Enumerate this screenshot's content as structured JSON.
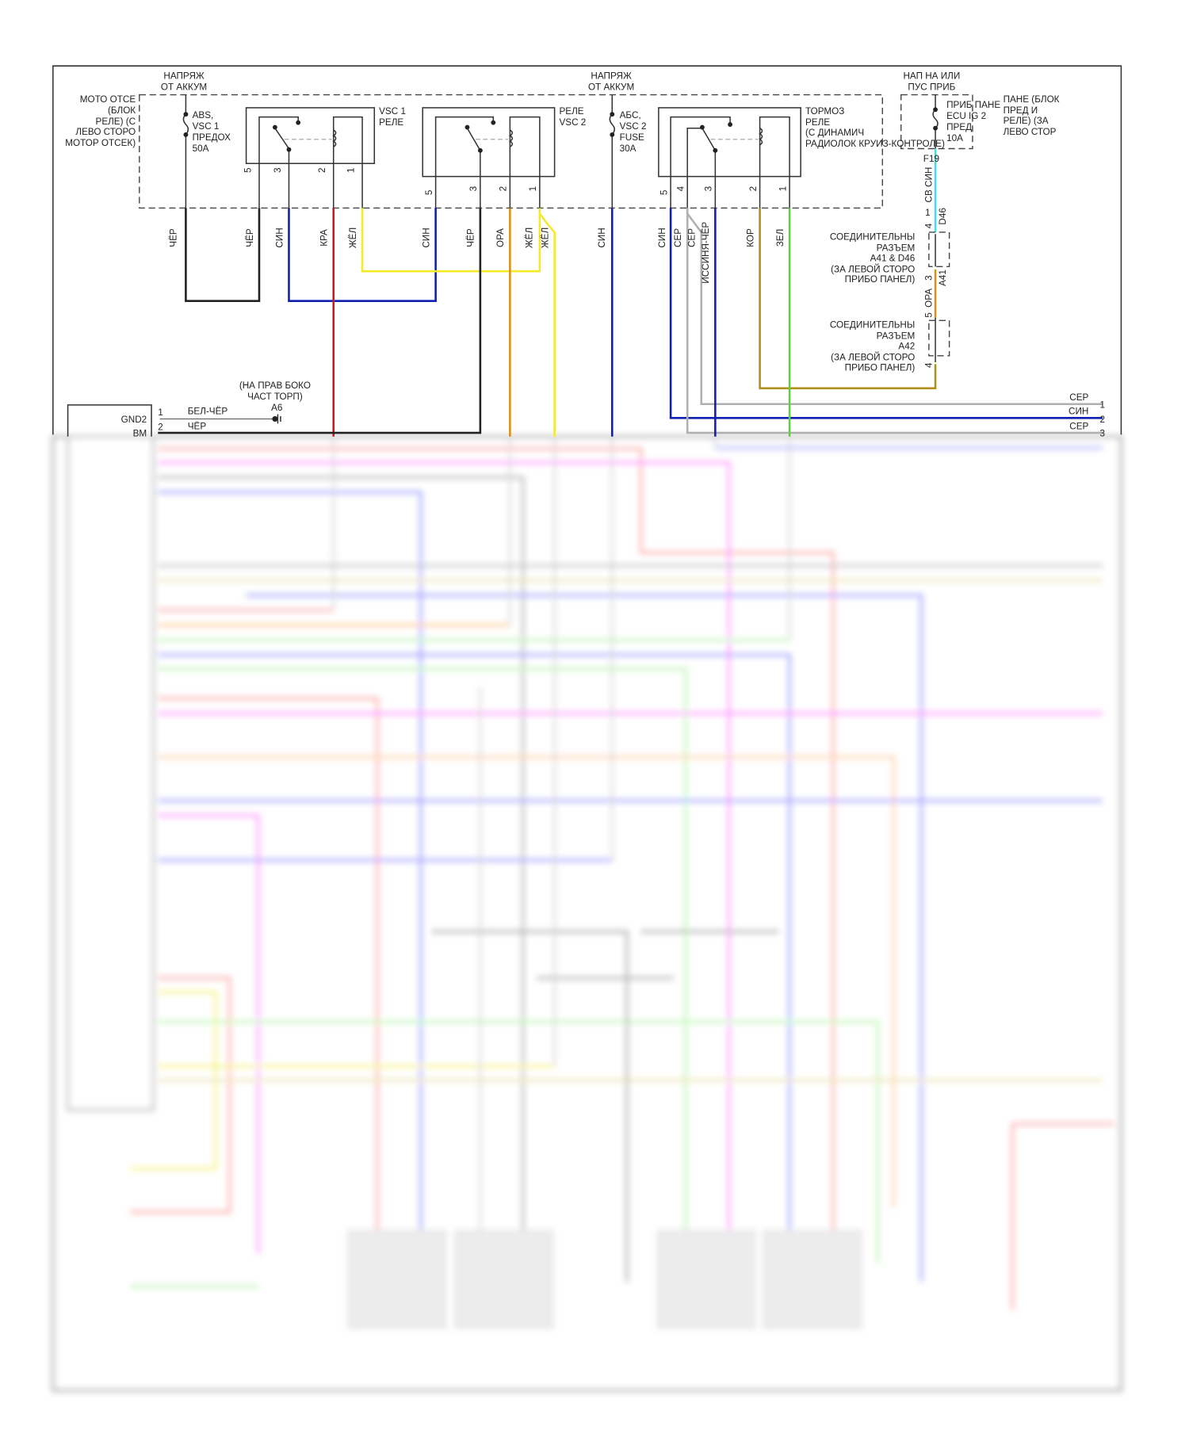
{
  "colors": {
    "black": "#222222",
    "blue": "#1020b0",
    "red": "#d01818",
    "yellow": "#f2ea2a",
    "orange": "#d8901a",
    "brown": "#b0901a",
    "green": "#60d040",
    "gray": "#b0b0b0",
    "cyan": "#40e0e8"
  },
  "top_labels": {
    "batt1": [
      "НАПРЯЖ",
      "ОТ АККУМ"
    ],
    "batt2": [
      "НАПРЯЖ",
      "ОТ АККУМ"
    ],
    "ign": [
      "НАП НА ИЛИ",
      "ПУС ПРИБ"
    ]
  },
  "engine_block": [
    "МОТО ОТСЕ",
    "(БЛОК",
    "РЕЛЕ) (С",
    "ЛЕВО СТОРО",
    "МОТОР ОТСЕК)"
  ],
  "fuse1": [
    "ABS,",
    "VSC 1",
    "ПРЕДОХ",
    "50A"
  ],
  "fuse2": [
    "АБС,",
    "VSC 2",
    "FUSE",
    "30A"
  ],
  "relay1": [
    "VSC 1",
    "РЕЛЕ"
  ],
  "relay2": [
    "РЕЛЕ",
    "VSC 2"
  ],
  "relay3": [
    "ТОРМОЗ",
    "РЕЛЕ",
    "(С ДИНАМИЧ",
    "РАДИОЛОК КРУИЗ-КОНТРОЛЕ)"
  ],
  "fuse3": [
    "ПРИБ ПАНЕ",
    "ECU IG 2",
    "ПРЕД",
    "10A"
  ],
  "panel_block": [
    "ПАНЕ (БЛОК",
    "ПРЕД И",
    "РЕЛЕ) (ЗА",
    "ЛЕВО СТОР"
  ],
  "pins": {
    "p1": "1",
    "p2": "2",
    "p3": "3",
    "p4": "4",
    "p5": "5"
  },
  "wire_labels": [
    "ЧЁР",
    "ЧЁР",
    "СИН",
    "КРА",
    "ЖЁЛ",
    "СИН",
    "ЧЁР",
    "ОРА",
    "ЖЁЛ",
    "ЖЁЛ",
    "СИН",
    "СИН",
    "СЕР",
    "СЕР",
    "ИССИНЯ-ЧЁР",
    "КОР",
    "ЗЕЛ"
  ],
  "f19": {
    "id": "F19",
    "wire": "СВ СИН",
    "pin": "1"
  },
  "d46": {
    "pin": "4",
    "id": "D46"
  },
  "a41": {
    "pin": "3",
    "id": "A41",
    "pin2": "5",
    "wire": "ОРА"
  },
  "a42": {
    "pin": "4"
  },
  "junction1": [
    "СОЕДИНИТЕЛЬНЫ",
    "РАЗЪЕМ",
    "A41 & D46",
    "(ЗА ЛЕВОЙ СТОРО",
    "ПРИБО ПАНЕЛ)"
  ],
  "junction2": [
    "СОЕДИНИТЕЛЬНЫ",
    "РАЗЪЕМ",
    "A42",
    "(ЗА ЛЕВОЙ СТОРО",
    "ПРИБО ПАНЕЛ)"
  ],
  "right_out": [
    {
      "wire": "СЕР",
      "pin": "1"
    },
    {
      "wire": "СИН",
      "pin": "2"
    },
    {
      "wire": "СЕР",
      "pin": "3"
    }
  ],
  "ground": {
    "location": [
      "(НА ПРАВ БОКО",
      "ЧАСТ ТОРП)"
    ],
    "id": "A6"
  },
  "ecu": {
    "pins": [
      {
        "name": "GND2",
        "num": "1",
        "wire": "БЕЛ-ЧЁР"
      },
      {
        "name": "BM",
        "num": "2",
        "wire": "ЧЁР"
      }
    ]
  }
}
